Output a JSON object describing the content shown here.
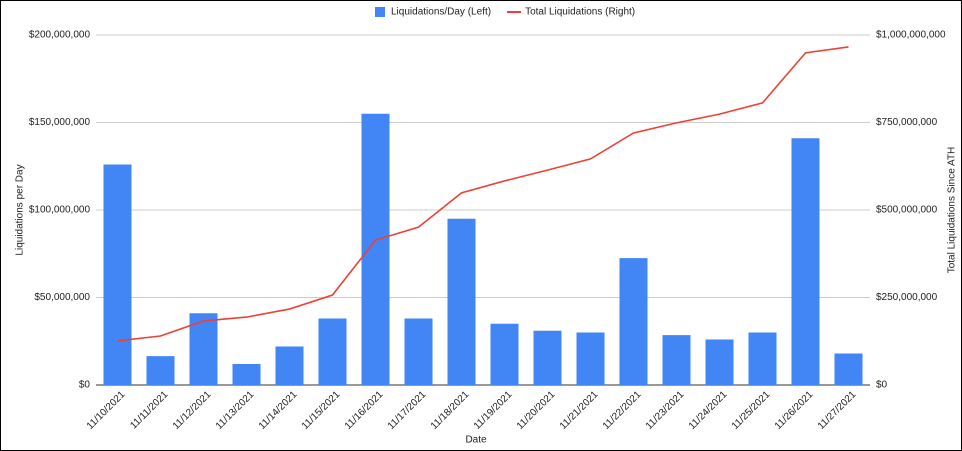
{
  "chart_data": {
    "type": "combo",
    "legend": "top",
    "grid": true,
    "x_label": "Date",
    "y_label": "Liquidations per Day",
    "y2_label": "Total Liquidations Since ATH",
    "categories": [
      "11/10/2021",
      "11/11/2021",
      "11/12/2021",
      "11/13/2021",
      "11/14/2021",
      "11/15/2021",
      "11/16/2021",
      "11/17/2021",
      "11/18/2021",
      "11/19/2021",
      "11/20/2021",
      "11/21/2021",
      "11/22/2021",
      "11/23/2021",
      "11/24/2021",
      "11/25/2021",
      "11/26/2021",
      "11/27/2021"
    ],
    "series": [
      {
        "name": "Liquidations/Day (Left)",
        "type": "bar",
        "axis": "y",
        "color": "#4285f4",
        "values": [
          126000000,
          16500000,
          41000000,
          12000000,
          22000000,
          38000000,
          155000000,
          38000000,
          95000000,
          35000000,
          31000000,
          30000000,
          72500000,
          28500000,
          26000000,
          30000000,
          141000000,
          18000000
        ]
      },
      {
        "name": "Total Liquidations (Right)",
        "type": "line",
        "axis": "y2",
        "color": "#ea4335",
        "values": [
          126000000,
          140000000,
          183000000,
          194000000,
          217000000,
          257000000,
          414000000,
          451000000,
          549000000,
          583000000,
          614000000,
          646000000,
          720000000,
          749000000,
          774000000,
          806000000,
          949000000,
          966000000
        ]
      }
    ],
    "ylim": [
      0,
      200000000
    ],
    "yticks": [
      {
        "value": 0,
        "label": "$0"
      },
      {
        "value": 50000000,
        "label": "$50,000,000"
      },
      {
        "value": 100000000,
        "label": "$100,000,000"
      },
      {
        "value": 150000000,
        "label": "$150,000,000"
      },
      {
        "value": 200000000,
        "label": "$200,000,000"
      }
    ],
    "y2lim": [
      0,
      1000000000
    ],
    "y2ticks": [
      {
        "value": 0,
        "label": "$0"
      },
      {
        "value": 250000000,
        "label": "$250,000,000"
      },
      {
        "value": 500000000,
        "label": "$500,000,000"
      },
      {
        "value": 750000000,
        "label": "$750,000,000"
      },
      {
        "value": 1000000000,
        "label": "$1,000,000,000"
      }
    ]
  }
}
